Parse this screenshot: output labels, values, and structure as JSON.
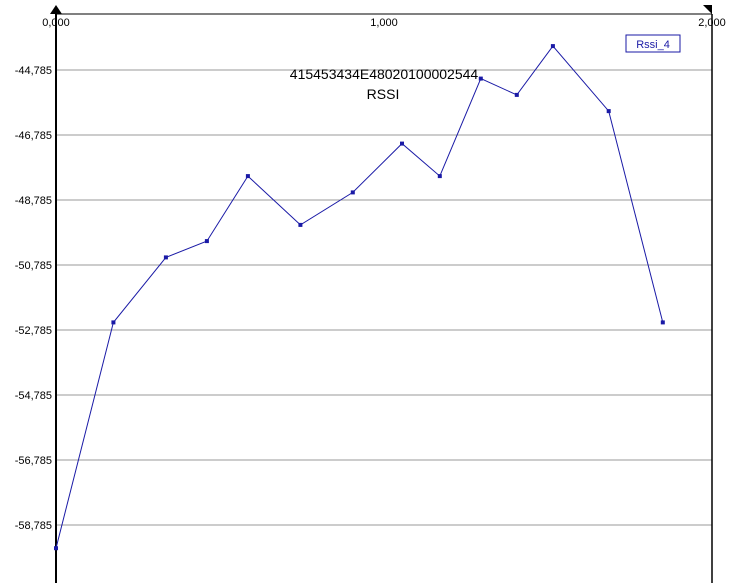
{
  "chart_data": {
    "type": "line",
    "title": "415453434E4802010000 2544",
    "title_full": "415453434E48020100002544",
    "subtitle": "RSSI",
    "xlim": [
      0,
      2
    ],
    "ylim": [
      -60.0,
      -43.2
    ],
    "x_ticks": [
      {
        "value": 0,
        "label": "0,000"
      },
      {
        "value": 1,
        "label": "1,000"
      },
      {
        "value": 2,
        "label": "2,000"
      }
    ],
    "y_ticks": [
      {
        "value": -44.785,
        "label": "-44,785"
      },
      {
        "value": -46.785,
        "label": "-46,785"
      },
      {
        "value": -48.785,
        "label": "-48,785"
      },
      {
        "value": -50.785,
        "label": "-50,785"
      },
      {
        "value": -52.785,
        "label": "-52,785"
      },
      {
        "value": -54.785,
        "label": "-54,785"
      },
      {
        "value": -56.785,
        "label": "-56,785"
      },
      {
        "value": -58.785,
        "label": "-58,785"
      }
    ],
    "grid": true,
    "legend_position": "top-right",
    "series": [
      {
        "name": "Rssi_4",
        "color": "#1a1aa6",
        "x": [
          0.0,
          0.175,
          0.335,
          0.46,
          0.585,
          0.745,
          0.905,
          1.055,
          1.17,
          1.295,
          1.405,
          1.515,
          1.685,
          1.85
        ],
        "y": [
          -59.5,
          -52.55,
          -50.55,
          -50.05,
          -48.05,
          -49.55,
          -48.55,
          -47.05,
          -48.05,
          -45.05,
          -45.55,
          -44.05,
          -46.05,
          -52.55
        ]
      }
    ]
  }
}
